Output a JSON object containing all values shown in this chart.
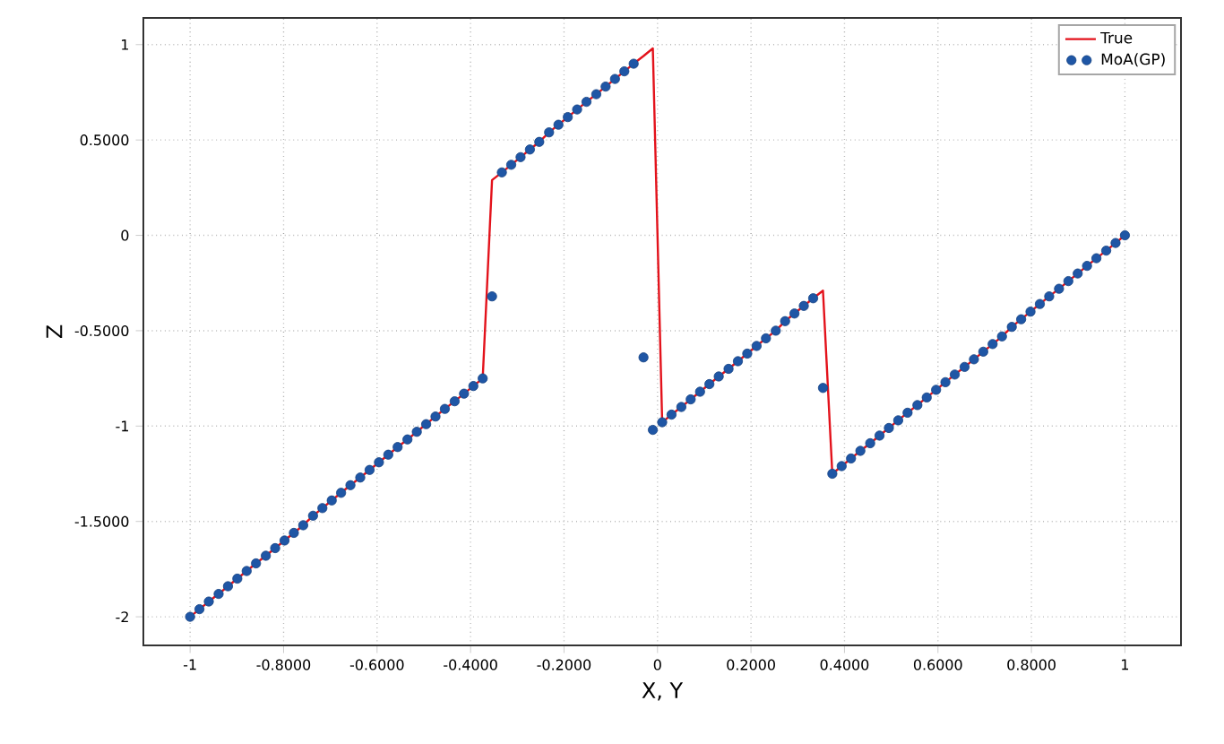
{
  "chart_data": {
    "type": "scatter",
    "xlabel": "X, Y",
    "ylabel": "Z",
    "x": [
      -1,
      -0.98,
      -0.96,
      -0.939,
      -0.919,
      -0.899,
      -0.879,
      -0.859,
      -0.838,
      -0.818,
      -0.798,
      -0.778,
      -0.758,
      -0.737,
      -0.717,
      -0.697,
      -0.677,
      -0.657,
      -0.636,
      -0.616,
      -0.596,
      -0.576,
      -0.556,
      -0.535,
      -0.515,
      -0.495,
      -0.475,
      -0.455,
      -0.434,
      -0.414,
      -0.394,
      -0.374,
      -0.354,
      -0.333,
      -0.313,
      -0.293,
      -0.273,
      -0.253,
      -0.232,
      -0.212,
      -0.192,
      -0.172,
      -0.152,
      -0.131,
      -0.111,
      -0.091,
      -0.071,
      -0.051,
      -0.03,
      -0.01,
      0.01,
      0.03,
      0.051,
      0.071,
      0.091,
      0.111,
      0.131,
      0.152,
      0.172,
      0.192,
      0.212,
      0.232,
      0.253,
      0.273,
      0.293,
      0.313,
      0.333,
      0.354,
      0.374,
      0.394,
      0.414,
      0.434,
      0.455,
      0.475,
      0.495,
      0.515,
      0.535,
      0.556,
      0.576,
      0.596,
      0.616,
      0.636,
      0.657,
      0.677,
      0.697,
      0.717,
      0.737,
      0.758,
      0.778,
      0.798,
      0.818,
      0.838,
      0.859,
      0.879,
      0.899,
      0.919,
      0.939,
      0.96,
      0.98,
      1
    ],
    "series": [
      {
        "name": "True",
        "type": "line",
        "color": "#e3121b",
        "values": [
          -2,
          -1.96,
          -1.92,
          -1.88,
          -1.84,
          -1.8,
          -1.76,
          -1.72,
          -1.68,
          -1.64,
          -1.6,
          -1.56,
          -1.52,
          -1.47,
          -1.43,
          -1.39,
          -1.35,
          -1.31,
          -1.27,
          -1.23,
          -1.19,
          -1.15,
          -1.11,
          -1.07,
          -1.03,
          -0.99,
          -0.95,
          -0.91,
          -0.87,
          -0.83,
          -0.79,
          -0.75,
          0.29,
          0.33,
          0.37,
          0.41,
          0.45,
          0.49,
          0.54,
          0.58,
          0.62,
          0.66,
          0.7,
          0.74,
          0.78,
          0.82,
          0.86,
          0.9,
          0.94,
          0.98,
          -0.98,
          -0.94,
          -0.9,
          -0.86,
          -0.82,
          -0.78,
          -0.74,
          -0.7,
          -0.66,
          -0.62,
          -0.58,
          -0.54,
          -0.5,
          -0.45,
          -0.41,
          -0.37,
          -0.33,
          -0.29,
          -1.25,
          -1.21,
          -1.17,
          -1.13,
          -1.09,
          -1.05,
          -1.01,
          -0.97,
          -0.93,
          -0.89,
          -0.85,
          -0.81,
          -0.77,
          -0.73,
          -0.69,
          -0.65,
          -0.61,
          -0.57,
          -0.53,
          -0.48,
          -0.44,
          -0.4,
          -0.36,
          -0.32,
          -0.28,
          -0.24,
          -0.2,
          -0.16,
          -0.12,
          -0.08,
          -0.04,
          0
        ]
      },
      {
        "name": "MoA(GP)",
        "marker": "circle",
        "color": "#1f56a5",
        "values": [
          -2,
          -1.96,
          -1.92,
          -1.88,
          -1.84,
          -1.8,
          -1.76,
          -1.72,
          -1.68,
          -1.64,
          -1.6,
          -1.56,
          -1.52,
          -1.47,
          -1.43,
          -1.39,
          -1.35,
          -1.31,
          -1.27,
          -1.23,
          -1.19,
          -1.15,
          -1.11,
          -1.07,
          -1.03,
          -0.99,
          -0.95,
          -0.91,
          -0.87,
          -0.83,
          -0.79,
          -0.75,
          -0.32,
          0.33,
          0.37,
          0.41,
          0.45,
          0.49,
          0.54,
          0.58,
          0.62,
          0.66,
          0.7,
          0.74,
          0.78,
          0.82,
          0.86,
          0.9,
          -0.64,
          -1.02,
          -0.98,
          -0.94,
          -0.9,
          -0.86,
          -0.82,
          -0.78,
          -0.74,
          -0.7,
          -0.66,
          -0.62,
          -0.58,
          -0.54,
          -0.5,
          -0.45,
          -0.41,
          -0.37,
          -0.33,
          -0.8,
          -1.25,
          -1.21,
          -1.17,
          -1.13,
          -1.09,
          -1.05,
          -1.01,
          -0.97,
          -0.93,
          -0.89,
          -0.85,
          -0.81,
          -0.77,
          -0.73,
          -0.69,
          -0.65,
          -0.61,
          -0.57,
          -0.53,
          -0.48,
          -0.44,
          -0.4,
          -0.36,
          -0.32,
          -0.28,
          -0.24,
          -0.2,
          -0.16,
          -0.12,
          -0.08,
          -0.04,
          0
        ]
      }
    ],
    "xlim": [
      -1.1,
      1.12
    ],
    "ylim": [
      -2.15,
      1.14
    ],
    "xticks": [
      -1,
      {
        "value": -0.8,
        "label": "-0.8000"
      },
      {
        "value": -0.6,
        "label": "-0.6000"
      },
      {
        "value": -0.4,
        "label": "-0.4000"
      },
      {
        "value": -0.2,
        "label": "-0.2000"
      },
      0,
      {
        "value": 0.2,
        "label": "0.2000"
      },
      {
        "value": 0.4,
        "label": "0.4000"
      },
      {
        "value": 0.6,
        "label": "0.6000"
      },
      {
        "value": 0.8,
        "label": "0.8000"
      },
      1
    ],
    "yticks": [
      -2,
      {
        "value": -1.5,
        "label": "-1.5000"
      },
      -1,
      {
        "value": -0.5,
        "label": "-0.5000"
      },
      0,
      {
        "value": 0.5,
        "label": "0.5000"
      },
      1
    ],
    "grid": true,
    "legend": "top right"
  }
}
